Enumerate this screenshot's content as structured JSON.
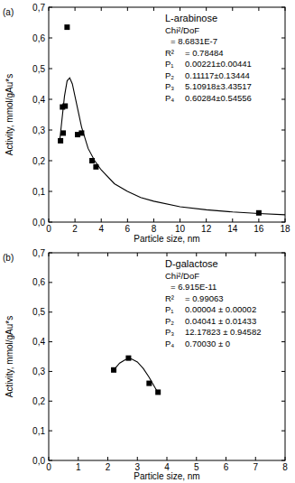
{
  "chart_data": [
    {
      "type": "scatter",
      "title": "(a)",
      "x_label": "Particle size, nm",
      "y_label": "Activity, mmol/gAu*s",
      "xlim": [
        0,
        18
      ],
      "xticks": [
        0,
        2,
        4,
        6,
        8,
        10,
        12,
        14,
        16,
        18
      ],
      "ylim": [
        0,
        0.7
      ],
      "yticks": [
        {
          "value": 0,
          "label": "0,0"
        },
        {
          "value": 0.1,
          "label": "0,1"
        },
        {
          "value": 0.2,
          "label": "0,2"
        },
        {
          "value": 0.3,
          "label": "0,3"
        },
        {
          "value": 0.4,
          "label": "0,4"
        },
        {
          "value": 0.5,
          "label": "0,5"
        },
        {
          "value": 0.6,
          "label": "0,6"
        },
        {
          "value": 0.7,
          "label": "0,7"
        }
      ],
      "annotations": [
        [
          "L-arabinose"
        ],
        [
          "Chi²/DoF"
        ],
        [
          "= 8.6831E-7"
        ],
        [
          "R²",
          "= 0.78484"
        ],
        [
          "P₁",
          "0.00221±0.00441"
        ],
        [
          "P₂",
          "0.11117±0.13444"
        ],
        [
          "P₃",
          "5.10918±3.43517"
        ],
        [
          "P₄",
          "0.60284±0.54556"
        ]
      ],
      "series": [
        {
          "type": "scatter",
          "marker": "square",
          "color": "#000000",
          "x": [
            0.9,
            1.05,
            1.1,
            1.25,
            1.4,
            2.2,
            2.5,
            3.3,
            3.6,
            16
          ],
          "values": [
            0.265,
            0.375,
            0.29,
            0.378,
            0.635,
            0.285,
            0.29,
            0.2,
            0.18,
            0.03
          ]
        },
        {
          "type": "line",
          "line_style": "solid",
          "color": "#000000",
          "x": [
            0.85,
            1.0,
            1.2,
            1.4,
            1.6,
            1.8,
            2.0,
            2.5,
            3,
            3.5,
            4,
            5,
            6,
            7,
            8,
            10,
            12,
            14,
            16,
            18
          ],
          "values": [
            0.27,
            0.33,
            0.41,
            0.46,
            0.47,
            0.45,
            0.41,
            0.31,
            0.24,
            0.2,
            0.17,
            0.125,
            0.1,
            0.08,
            0.068,
            0.05,
            0.04,
            0.033,
            0.028,
            0.024
          ]
        }
      ]
    },
    {
      "type": "scatter",
      "title": "(b)",
      "x_label": "Particle size, nm",
      "y_label": "Activity, mmol/gAu*s",
      "xlim": [
        0,
        8
      ],
      "xticks": [
        0,
        1,
        2,
        3,
        4,
        5,
        6,
        7,
        8
      ],
      "ylim": [
        0,
        0.7
      ],
      "yticks": [
        {
          "value": 0,
          "label": "0,0"
        },
        {
          "value": 0.1,
          "label": "0,1"
        },
        {
          "value": 0.2,
          "label": "0,2"
        },
        {
          "value": 0.3,
          "label": "0,3"
        },
        {
          "value": 0.4,
          "label": "0,4"
        },
        {
          "value": 0.5,
          "label": "0,5"
        },
        {
          "value": 0.6,
          "label": "0,6"
        },
        {
          "value": 0.7,
          "label": "0,7"
        }
      ],
      "annotations": [
        [
          "D-galactose"
        ],
        [
          "Chi²/DoF"
        ],
        [
          "= 6.915E-11"
        ],
        [
          "R²",
          "= 0.99063"
        ],
        [
          "P₁",
          "0.00004 ± 0.00002"
        ],
        [
          "P₂",
          "0.04041 ± 0.01433"
        ],
        [
          "P₃",
          "12.17823 ± 0.94582"
        ],
        [
          "P₄",
          "0.70030 ± 0"
        ]
      ],
      "series": [
        {
          "type": "scatter",
          "marker": "square",
          "color": "#000000",
          "x": [
            2.2,
            2.7,
            3.4,
            3.7
          ],
          "values": [
            0.305,
            0.345,
            0.26,
            0.23
          ]
        },
        {
          "type": "line",
          "line_style": "solid",
          "color": "#000000",
          "x": [
            2.2,
            2.4,
            2.6,
            2.8,
            3.0,
            3.2,
            3.4,
            3.6,
            3.7
          ],
          "values": [
            0.305,
            0.328,
            0.34,
            0.342,
            0.332,
            0.31,
            0.28,
            0.245,
            0.228
          ]
        }
      ]
    }
  ]
}
